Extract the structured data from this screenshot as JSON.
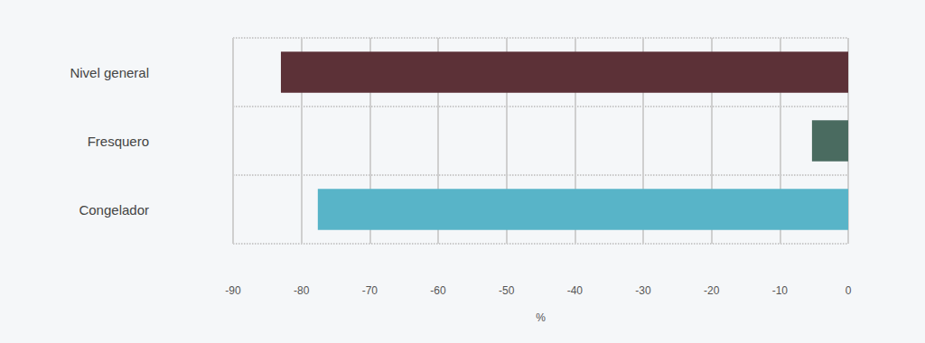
{
  "chart_data": {
    "type": "bar",
    "orientation": "horizontal",
    "categories": [
      "Nivel general",
      "Fresquero",
      "Congelador"
    ],
    "values": [
      -83,
      -5.3,
      -77.6
    ],
    "colors": [
      "#5c3137",
      "#4a6b60",
      "#58b4c8"
    ],
    "xlabel": "%",
    "xlim": [
      -90,
      0
    ],
    "xticks": [
      -90,
      -80,
      -70,
      -60,
      -50,
      -40,
      -30,
      -20,
      -10,
      0
    ],
    "grid": true
  }
}
